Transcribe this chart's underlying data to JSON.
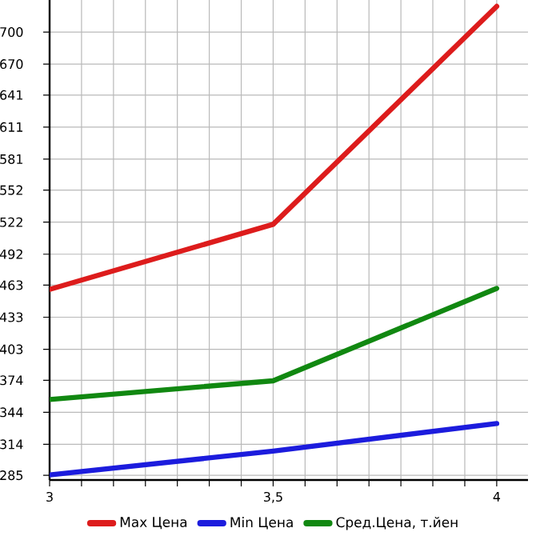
{
  "chart_data": {
    "type": "line",
    "xlim": [
      3,
      4.07
    ],
    "ylim": [
      280.6,
      730
    ],
    "xticks": [
      3,
      {
        "value": 3.0714,
        "label": null
      },
      {
        "value": 3.1429,
        "label": null
      },
      {
        "value": 3.2143,
        "label": null
      },
      {
        "value": 3.2857,
        "label": null
      },
      {
        "value": 3.3571,
        "label": null
      },
      {
        "value": 3.4286,
        "label": null
      },
      {
        "value": 3.5,
        "label": "3,5"
      },
      {
        "value": 3.5714,
        "label": null
      },
      {
        "value": 3.6429,
        "label": null
      },
      {
        "value": 3.7143,
        "label": null
      },
      {
        "value": 3.7857,
        "label": null
      },
      {
        "value": 3.8571,
        "label": null
      },
      {
        "value": 3.9286,
        "label": null
      },
      4
    ],
    "yticks": [
      285,
      314,
      344,
      374,
      403,
      433,
      463,
      492,
      522,
      552,
      581,
      611,
      641,
      670,
      700
    ],
    "x": [
      3,
      3.5,
      4
    ],
    "series": [
      {
        "name": "Max Цена",
        "color": "#dd1c1c",
        "values": [
          459,
          520,
          724
        ]
      },
      {
        "name": "Min Цена",
        "color": "#1c1cdd",
        "values": [
          285.4,
          307.7,
          333.5
        ]
      },
      {
        "name": "Сред.Цена, т.йен",
        "color": "#118811",
        "values": [
          356,
          373.5,
          460
        ]
      }
    ],
    "grid": true,
    "legend": "bottom",
    "marker": "none",
    "line_style": "solid"
  }
}
